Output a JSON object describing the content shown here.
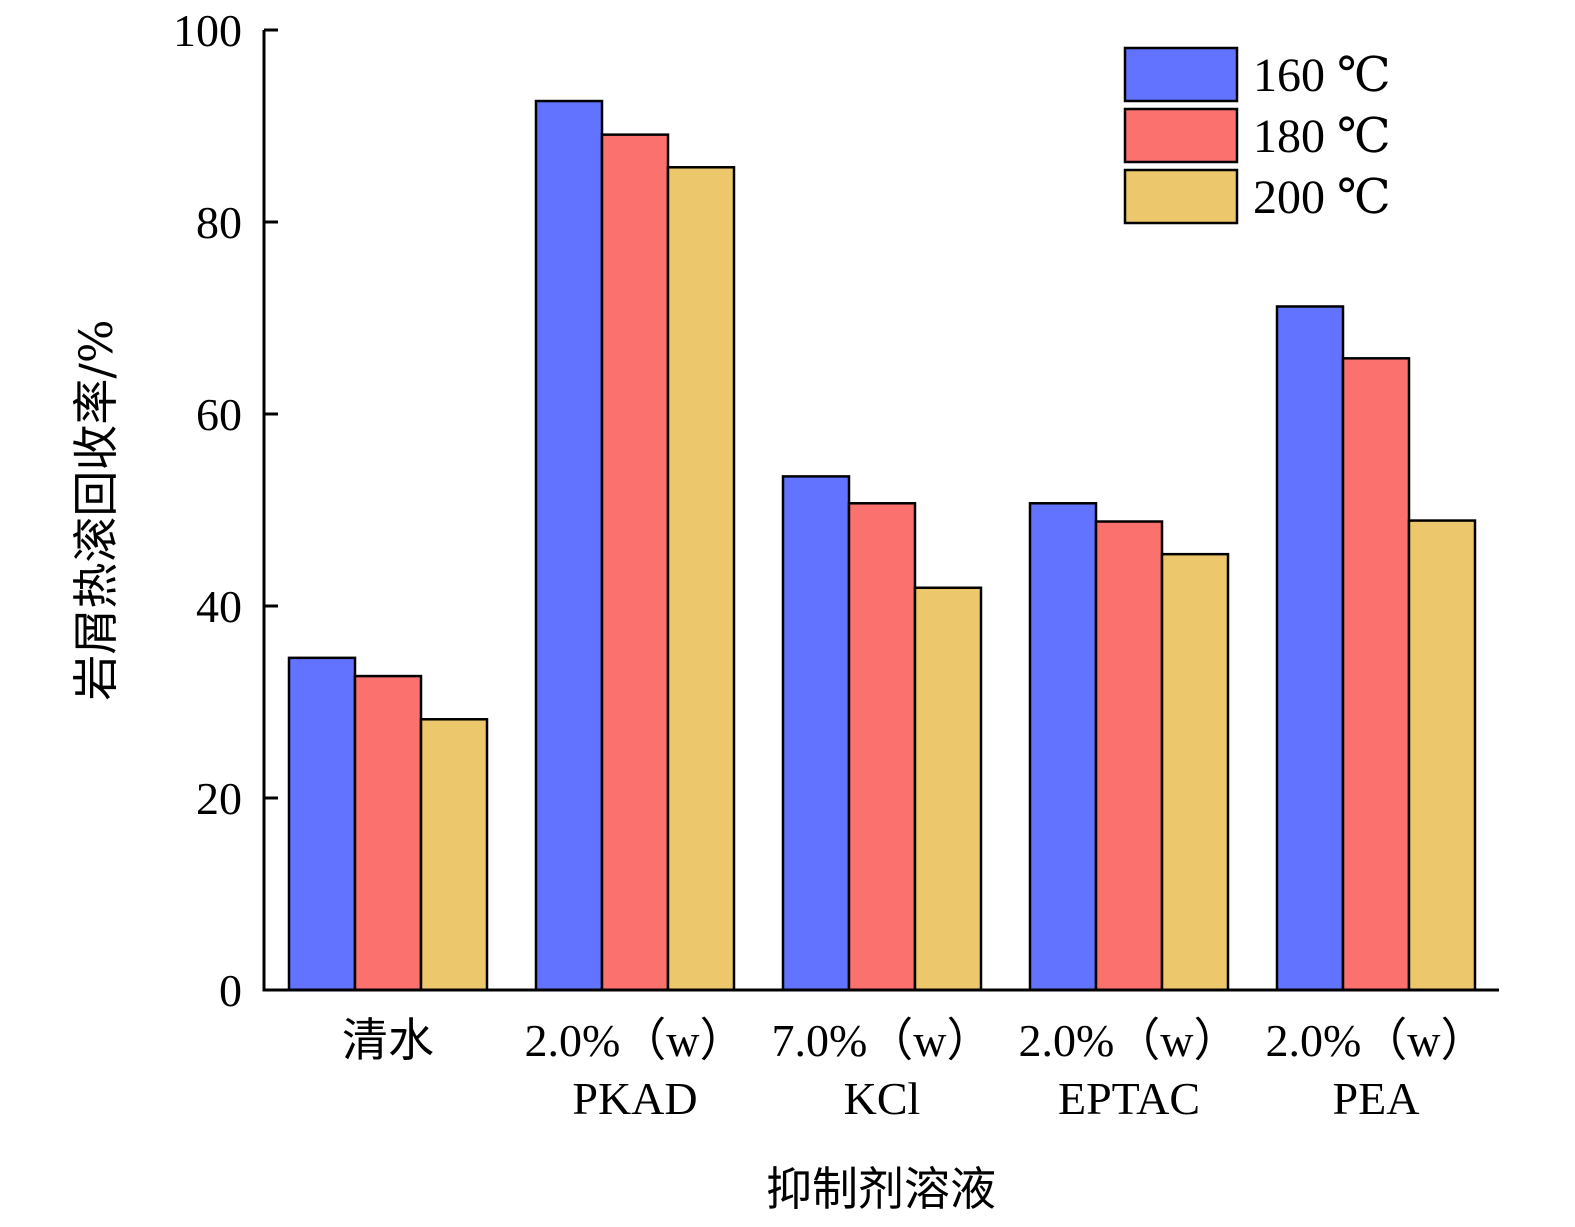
{
  "chart_data": {
    "type": "bar",
    "title": "",
    "xlabel": "抑制剂溶液",
    "ylabel": "岩屑热滚回收率/%",
    "ylim": [
      0,
      100
    ],
    "yticks": [
      0,
      20,
      40,
      60,
      80,
      100
    ],
    "grid": false,
    "legend_position": "top-right",
    "categories": [
      [
        "清水"
      ],
      [
        "2.0%（w）",
        "PKAD"
      ],
      [
        "7.0%（w）",
        "KCl"
      ],
      [
        "2.0%（w）",
        "EPTAC"
      ],
      [
        "2.0%（w）",
        "PEA"
      ]
    ],
    "series": [
      {
        "name": "160 ℃",
        "color": "#6173ff",
        "values": [
          34.6,
          92.6,
          53.5,
          50.7,
          71.2
        ]
      },
      {
        "name": "180 ℃",
        "color": "#fb716e",
        "values": [
          32.7,
          89.1,
          50.7,
          48.8,
          65.8
        ]
      },
      {
        "name": "200 ℃",
        "color": "#ecc76b",
        "values": [
          28.2,
          85.7,
          41.9,
          45.4,
          48.9
        ]
      }
    ]
  }
}
